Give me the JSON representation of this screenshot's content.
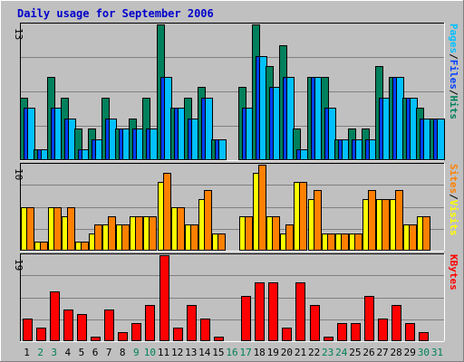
{
  "chart_data": {
    "type": "bar",
    "title": "Daily usage for September 2006",
    "categories": [
      "1",
      "2",
      "3",
      "4",
      "5",
      "6",
      "7",
      "8",
      "9",
      "10",
      "11",
      "12",
      "13",
      "14",
      "15",
      "16",
      "17",
      "18",
      "19",
      "20",
      "21",
      "22",
      "23",
      "24",
      "25",
      "26",
      "27",
      "28",
      "29",
      "30",
      "31"
    ],
    "weekend_days": [
      "2",
      "3",
      "9",
      "10",
      "16",
      "17",
      "23",
      "24",
      "30",
      "31"
    ],
    "colors": {
      "hits": "#00805c",
      "files": "#0040ff",
      "pages": "#00c0ff",
      "visits": "#ffff00",
      "sites": "#ff8000",
      "kbytes": "#ff0000",
      "weekday_label": "#000000",
      "weekend_label": "#00805c",
      "title": "#0000cc"
    },
    "panels": [
      {
        "name": "hits-files-pages",
        "ymax_label": "13",
        "ylim": [
          0,
          13
        ],
        "labels": [
          "Hits",
          "/",
          "Files",
          "/",
          "Pages"
        ],
        "label_colors": [
          "#00805c",
          "#000000",
          "#0040ff",
          "#000000",
          "#00c0ff"
        ],
        "series": [
          {
            "name": "Hits",
            "values": [
              6,
              1,
              8,
              6,
              3,
              3,
              6,
              3,
              4,
              6,
              13,
              5,
              6,
              7,
              2,
              null,
              7,
              13,
              9,
              11,
              3,
              8,
              8,
              2,
              3,
              3,
              9,
              8,
              6,
              5,
              4
            ]
          },
          {
            "name": "Files",
            "values": [
              5,
              1,
              5,
              4,
              1,
              2,
              4,
              3,
              3,
              3,
              8,
              5,
              4,
              6,
              2,
              null,
              5,
              10,
              7,
              8,
              1,
              8,
              5,
              2,
              2,
              2,
              6,
              8,
              6,
              4,
              4
            ]
          },
          {
            "name": "Pages",
            "values": [
              5,
              1,
              5,
              4,
              1,
              2,
              4,
              3,
              3,
              3,
              8,
              5,
              4,
              6,
              2,
              null,
              5,
              10,
              7,
              8,
              1,
              8,
              5,
              2,
              2,
              2,
              6,
              8,
              6,
              4,
              4
            ]
          }
        ]
      },
      {
        "name": "visits-sites",
        "ymax_label": "10",
        "ylim": [
          0,
          10
        ],
        "labels": [
          "Visits",
          "/",
          "Sites"
        ],
        "label_colors": [
          "#ffff00",
          "#000000",
          "#ff8000"
        ],
        "series": [
          {
            "name": "Visits",
            "values": [
              5,
              1,
              5,
              4,
              1,
              2,
              3,
              3,
              4,
              4,
              8,
              5,
              3,
              6,
              2,
              null,
              4,
              9,
              4,
              2,
              8,
              6,
              2,
              2,
              2,
              6,
              6,
              6,
              3,
              4,
              null
            ]
          },
          {
            "name": "Sites",
            "values": [
              5,
              1,
              5,
              5,
              1,
              3,
              4,
              3,
              4,
              4,
              9,
              5,
              3,
              7,
              2,
              null,
              4,
              10,
              4,
              3,
              8,
              7,
              2,
              2,
              2,
              7,
              6,
              7,
              3,
              4,
              null
            ]
          }
        ]
      },
      {
        "name": "kbytes",
        "ymax_label": "19",
        "ylim": [
          0,
          19
        ],
        "labels": [
          "KBytes"
        ],
        "label_colors": [
          "#ff0000"
        ],
        "series": [
          {
            "name": "KBytes",
            "values": [
              5,
              3,
              11,
              7,
              6,
              1,
              7,
              2,
              4,
              8,
              19,
              3,
              8,
              5,
              1,
              null,
              10,
              13,
              13,
              3,
              13,
              8,
              1,
              4,
              4,
              10,
              5,
              8,
              4,
              2,
              null
            ]
          }
        ]
      }
    ]
  }
}
